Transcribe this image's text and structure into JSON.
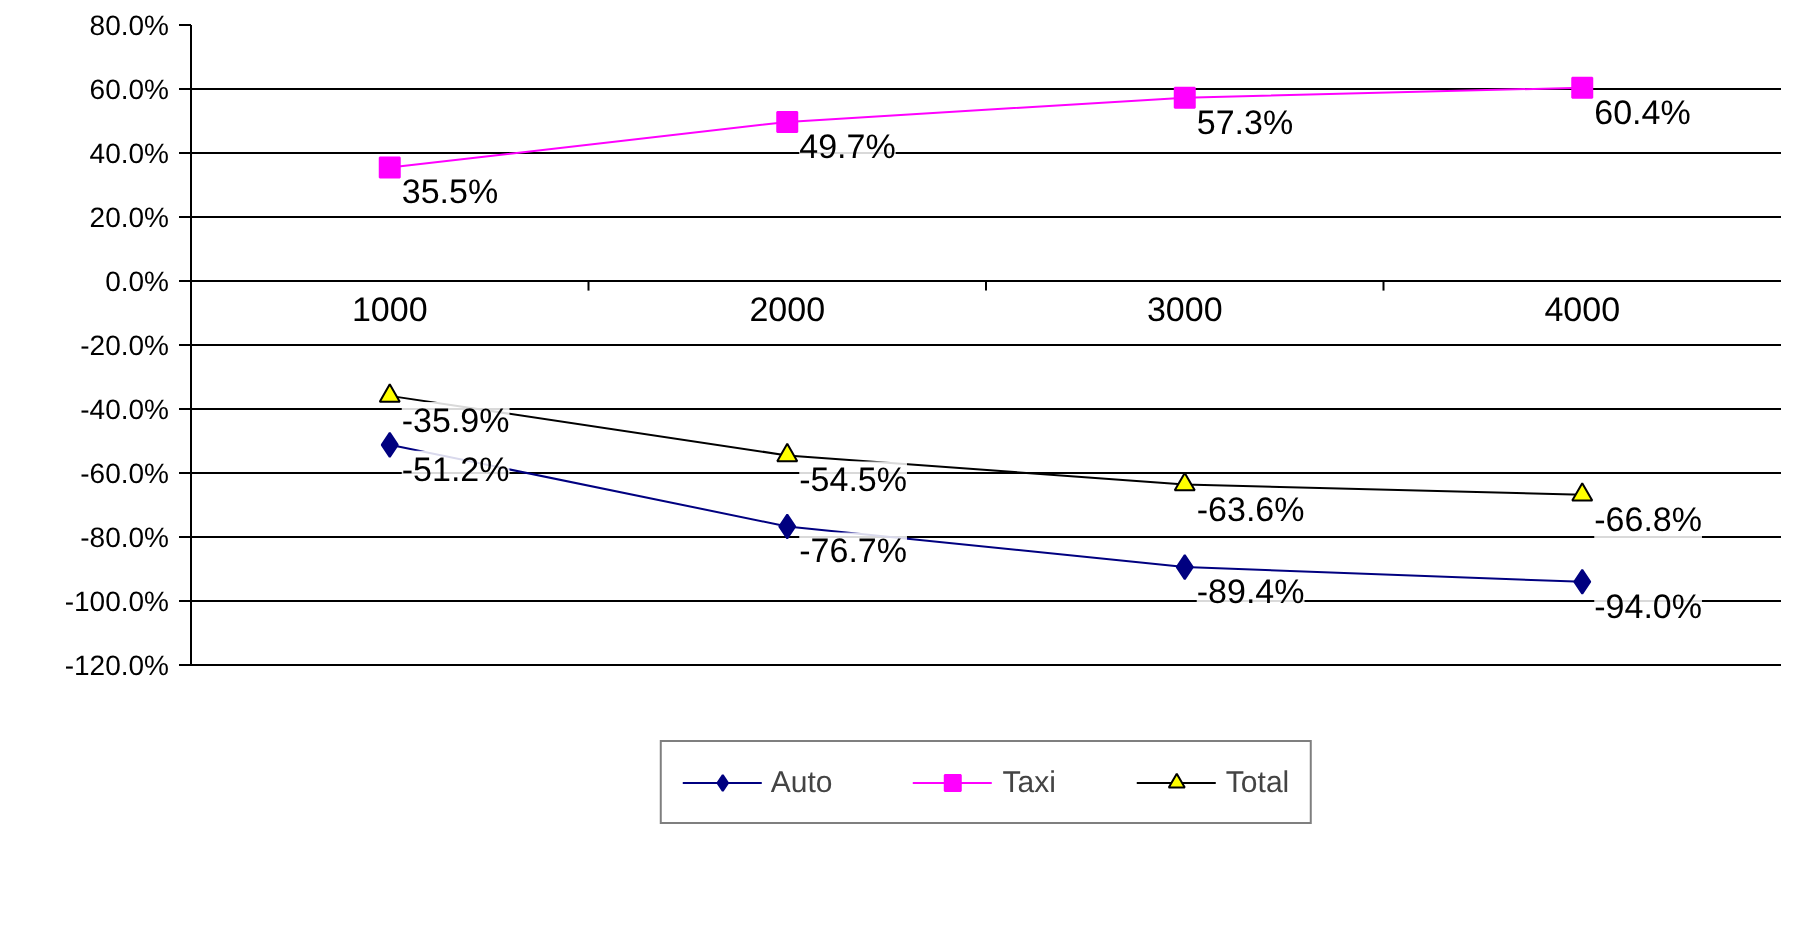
{
  "chart_data": {
    "type": "line",
    "categories": [
      "1000",
      "2000",
      "3000",
      "4000"
    ],
    "series": [
      {
        "name": "Auto",
        "color": "#000080",
        "marker": "diamond",
        "values": [
          -51.2,
          -76.7,
          -89.4,
          -94.0
        ],
        "value_labels": [
          "-51.2%",
          "-76.7%",
          "-89.4%",
          "-94.0%"
        ]
      },
      {
        "name": "Taxi",
        "color": "#ff00ff",
        "marker": "square",
        "values": [
          35.5,
          49.7,
          57.3,
          60.4
        ],
        "value_labels": [
          "35.5%",
          "49.7%",
          "57.3%",
          "60.4%"
        ]
      },
      {
        "name": "Total",
        "color": "#000000",
        "marker": "triangle",
        "values": [
          -35.9,
          -54.5,
          -63.6,
          -66.8
        ],
        "value_labels": [
          "-35.9%",
          "-54.5%",
          "-63.6%",
          "-66.8%"
        ]
      }
    ],
    "ylim": [
      -120,
      80
    ],
    "yticks": [
      {
        "value": -120,
        "label": "-120.0%"
      },
      {
        "value": -100,
        "label": "-100.0%"
      },
      {
        "value": -80,
        "label": "-80.0%"
      },
      {
        "value": -60,
        "label": "-60.0%"
      },
      {
        "value": -40,
        "label": "-40.0%"
      },
      {
        "value": -20,
        "label": "-20.0%"
      },
      {
        "value": 0,
        "label": "0.0%"
      },
      {
        "value": 20,
        "label": "20.0%"
      },
      {
        "value": 40,
        "label": "40.0%"
      },
      {
        "value": 60,
        "label": "60.0%"
      },
      {
        "value": 80,
        "label": "80.0%"
      }
    ],
    "grid": "y",
    "legend": "bottom"
  }
}
